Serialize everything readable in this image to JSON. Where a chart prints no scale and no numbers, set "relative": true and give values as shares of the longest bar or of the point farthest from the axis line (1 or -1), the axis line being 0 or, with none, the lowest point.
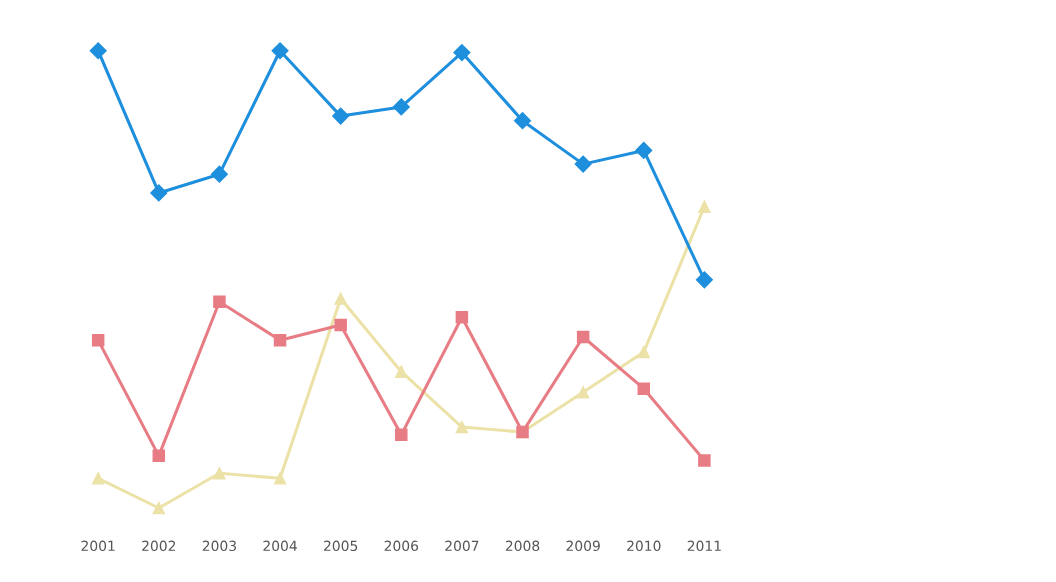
{
  "chart_data": {
    "type": "line",
    "relative": true,
    "categories": [
      "2001",
      "2002",
      "2003",
      "2004",
      "2005",
      "2006",
      "2007",
      "2008",
      "2009",
      "2010",
      "2011"
    ],
    "series": [
      {
        "color": "#1e8fdc",
        "marker": "diamond",
        "values": [
          1.0,
          0.689,
          0.73,
          1.0,
          0.857,
          0.877,
          0.996,
          0.847,
          0.752,
          0.782,
          0.499
        ]
      },
      {
        "color": "#e87c85",
        "marker": "square",
        "values": [
          0.367,
          0.114,
          0.451,
          0.367,
          0.4,
          0.16,
          0.417,
          0.166,
          0.374,
          0.261,
          0.104
        ]
      },
      {
        "color": "#ece2a8",
        "marker": "triangle",
        "values": [
          0.065,
          0.0,
          0.076,
          0.065,
          0.458,
          0.298,
          0.177,
          0.166,
          0.253,
          0.341,
          0.659
        ]
      }
    ],
    "grid": false
  }
}
